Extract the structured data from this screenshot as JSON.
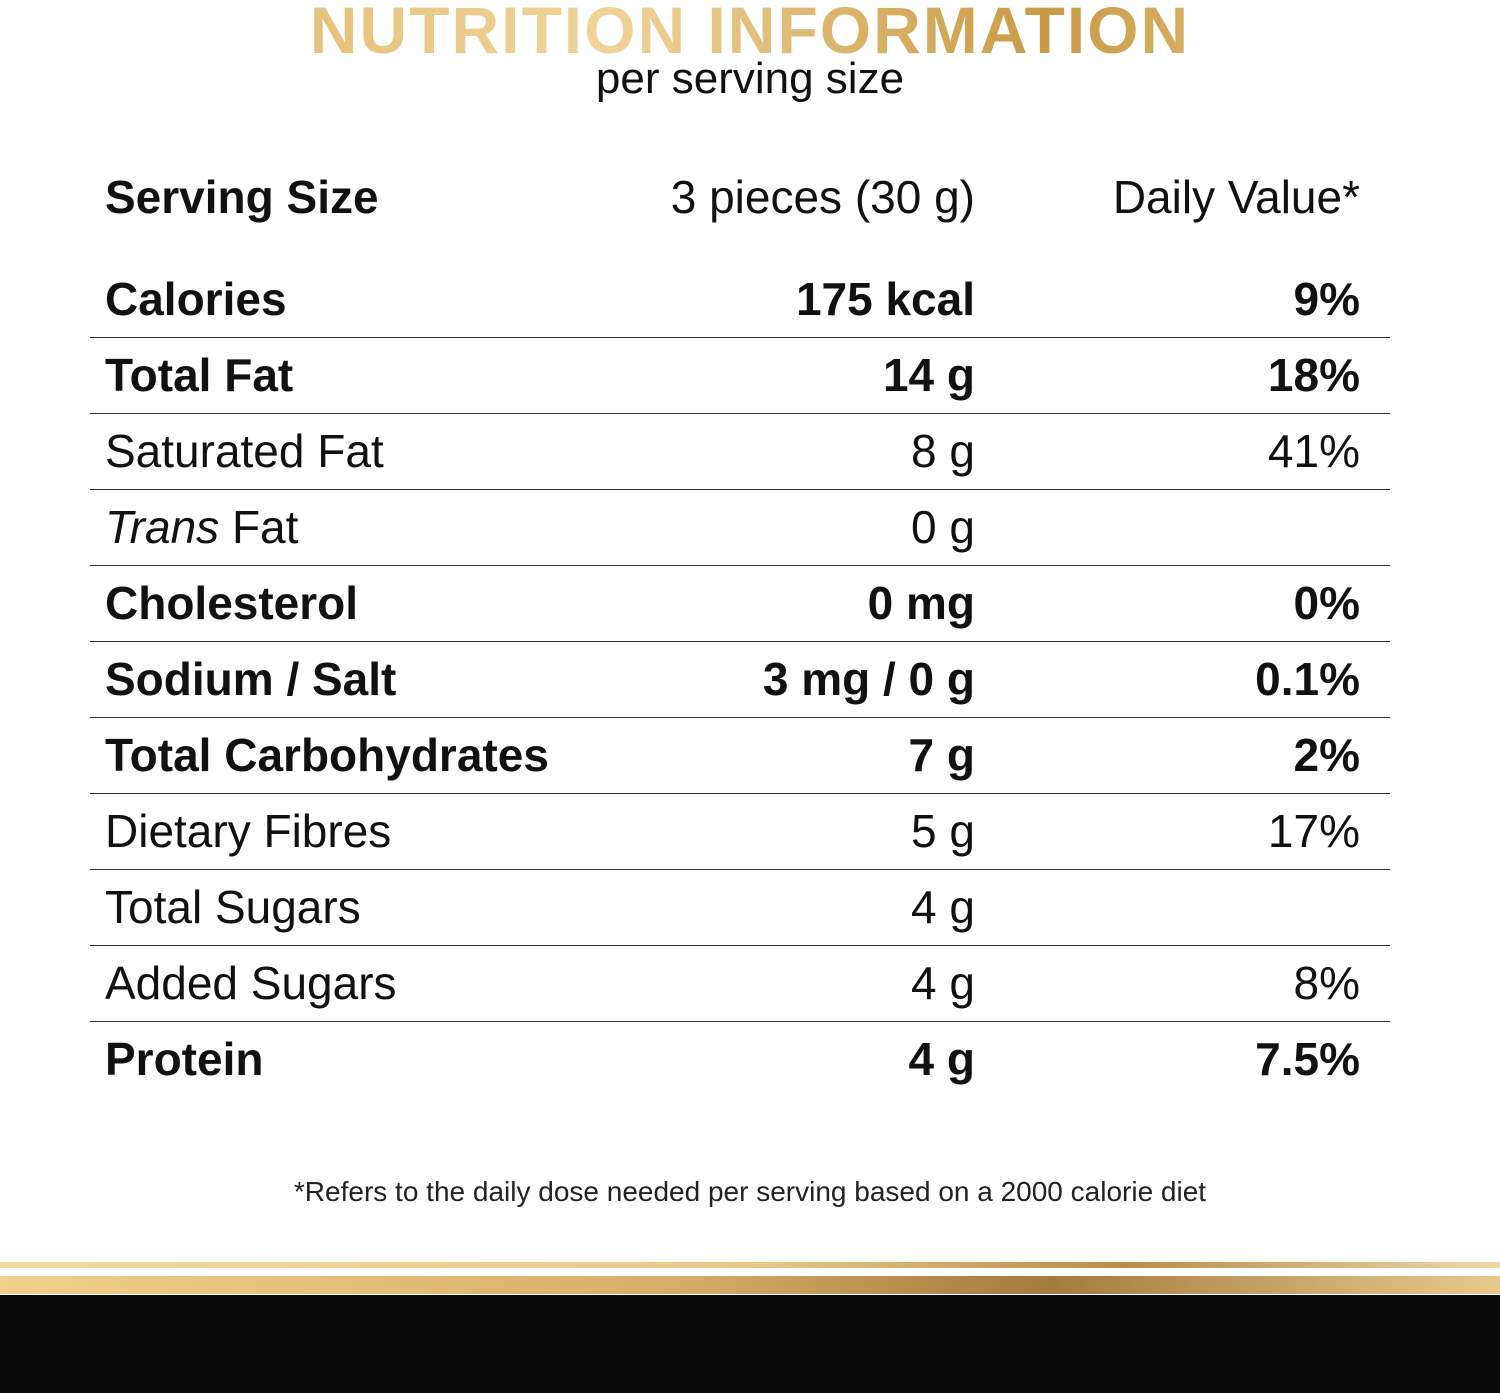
{
  "header": {
    "title": "NUTRITION INFORMATION",
    "subtitle": "per serving size"
  },
  "table": {
    "columns": [
      "Serving Size",
      "3 pieces (30 g)",
      "Daily Value*"
    ],
    "rows": [
      {
        "label": "Calories",
        "amount": "175 kcal",
        "daily_value": "9%",
        "bold": true
      },
      {
        "label": "Total Fat",
        "amount": "14 g",
        "daily_value": "18%",
        "bold": true
      },
      {
        "label": "Saturated Fat",
        "amount": "8 g",
        "daily_value": "41%",
        "bold": false
      },
      {
        "label_italic": "Trans",
        "label": "Fat",
        "amount": "0 g",
        "bold": false
      },
      {
        "label": "Cholesterol",
        "amount": "0 mg",
        "daily_value": "0%",
        "bold": true
      },
      {
        "label": "Sodium / Salt",
        "amount": "3 mg / 0 g",
        "daily_value": "0.1%",
        "bold": true
      },
      {
        "label": "Total Carbohydrates",
        "amount": "7 g",
        "daily_value": "2%",
        "bold": true
      },
      {
        "label": "Dietary Fibres",
        "amount": "5 g",
        "daily_value": "17%",
        "bold": false
      },
      {
        "label": "Total Sugars",
        "amount": "4 g",
        "bold": false
      },
      {
        "label": "Added Sugars",
        "amount": "4 g",
        "daily_value": "8%",
        "bold": false
      },
      {
        "label": "Protein",
        "amount": "4 g",
        "daily_value": "7.5%",
        "bold": true
      }
    ]
  },
  "footnote": "*Refers to the daily dose needed per serving based on a 2000 calorie diet"
}
